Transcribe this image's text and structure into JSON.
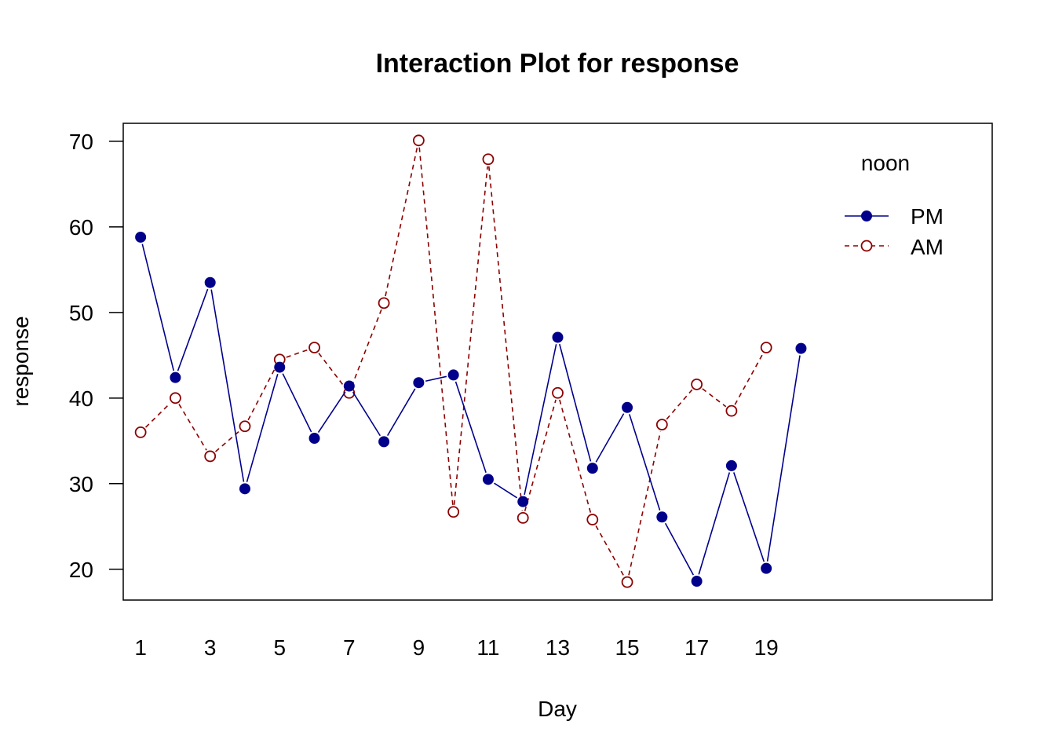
{
  "chart_data": {
    "type": "line",
    "title": "Interaction Plot for response",
    "xlabel": "Day",
    "ylabel": "response",
    "x": [
      1,
      2,
      3,
      4,
      5,
      6,
      7,
      8,
      9,
      10,
      11,
      12,
      13,
      14,
      15,
      16,
      17,
      18,
      19,
      20
    ],
    "x_tick_labels": [
      "1",
      "3",
      "5",
      "7",
      "9",
      "11",
      "13",
      "15",
      "17",
      "19"
    ],
    "x_tick_values": [
      1,
      3,
      5,
      7,
      9,
      11,
      13,
      15,
      17,
      19
    ],
    "xlim": [
      0.5,
      25.5
    ],
    "ylim": [
      16.4,
      72.1
    ],
    "y_ticks": [
      20,
      30,
      40,
      50,
      60,
      70
    ],
    "y_tick_labels": [
      "20",
      "30",
      "40",
      "50",
      "60",
      "70"
    ],
    "grid": false,
    "legend": {
      "title": "noon",
      "placement": "top-right"
    },
    "series": [
      {
        "name": "PM",
        "color": "#00008B",
        "line_style": "solid",
        "marker": "filled-circle",
        "values": [
          58.8,
          42.4,
          53.5,
          29.4,
          43.6,
          35.3,
          41.4,
          34.9,
          41.8,
          42.7,
          30.5,
          27.9,
          47.1,
          31.8,
          38.9,
          26.1,
          18.6,
          32.1,
          20.1,
          45.8
        ]
      },
      {
        "name": "AM",
        "color": "#8B0000",
        "line_style": "dashed",
        "marker": "open-circle",
        "values": [
          36.0,
          40.0,
          33.2,
          36.7,
          44.5,
          45.9,
          40.6,
          51.1,
          70.1,
          26.7,
          67.9,
          26.0,
          40.6,
          25.8,
          18.5,
          36.9,
          41.6,
          38.5,
          45.9,
          null
        ]
      }
    ]
  }
}
